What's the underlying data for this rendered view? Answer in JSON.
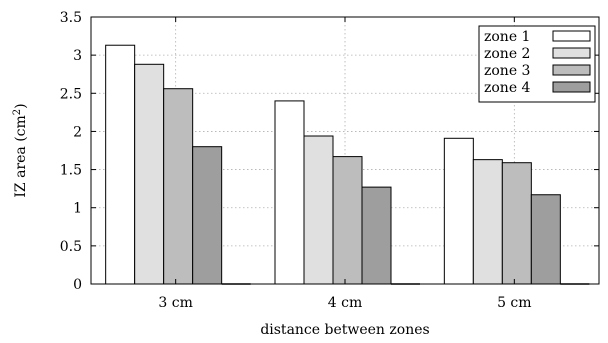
{
  "chart_data": {
    "type": "bar",
    "categories": [
      "3 cm",
      "4 cm",
      "5 cm"
    ],
    "series": [
      {
        "name": "zone 1",
        "values": [
          3.13,
          2.4,
          1.91
        ],
        "color": "#ffffff"
      },
      {
        "name": "zone 2",
        "values": [
          2.88,
          1.94,
          1.63
        ],
        "color": "#e0e0e0"
      },
      {
        "name": "zone 3",
        "values": [
          2.56,
          1.67,
          1.59
        ],
        "color": "#bdbdbd"
      },
      {
        "name": "zone 4",
        "values": [
          1.8,
          1.27,
          1.17
        ],
        "color": "#9e9e9e"
      }
    ],
    "xlabel": "distance between zones",
    "ylabel": "IZ area (cm²)",
    "ylim": [
      0,
      3.5
    ],
    "yticks": [
      "0",
      "0.5",
      "1",
      "1.5",
      "2",
      "2.5",
      "3",
      "3.5"
    ],
    "grid": true,
    "legend_position": "top-right"
  }
}
